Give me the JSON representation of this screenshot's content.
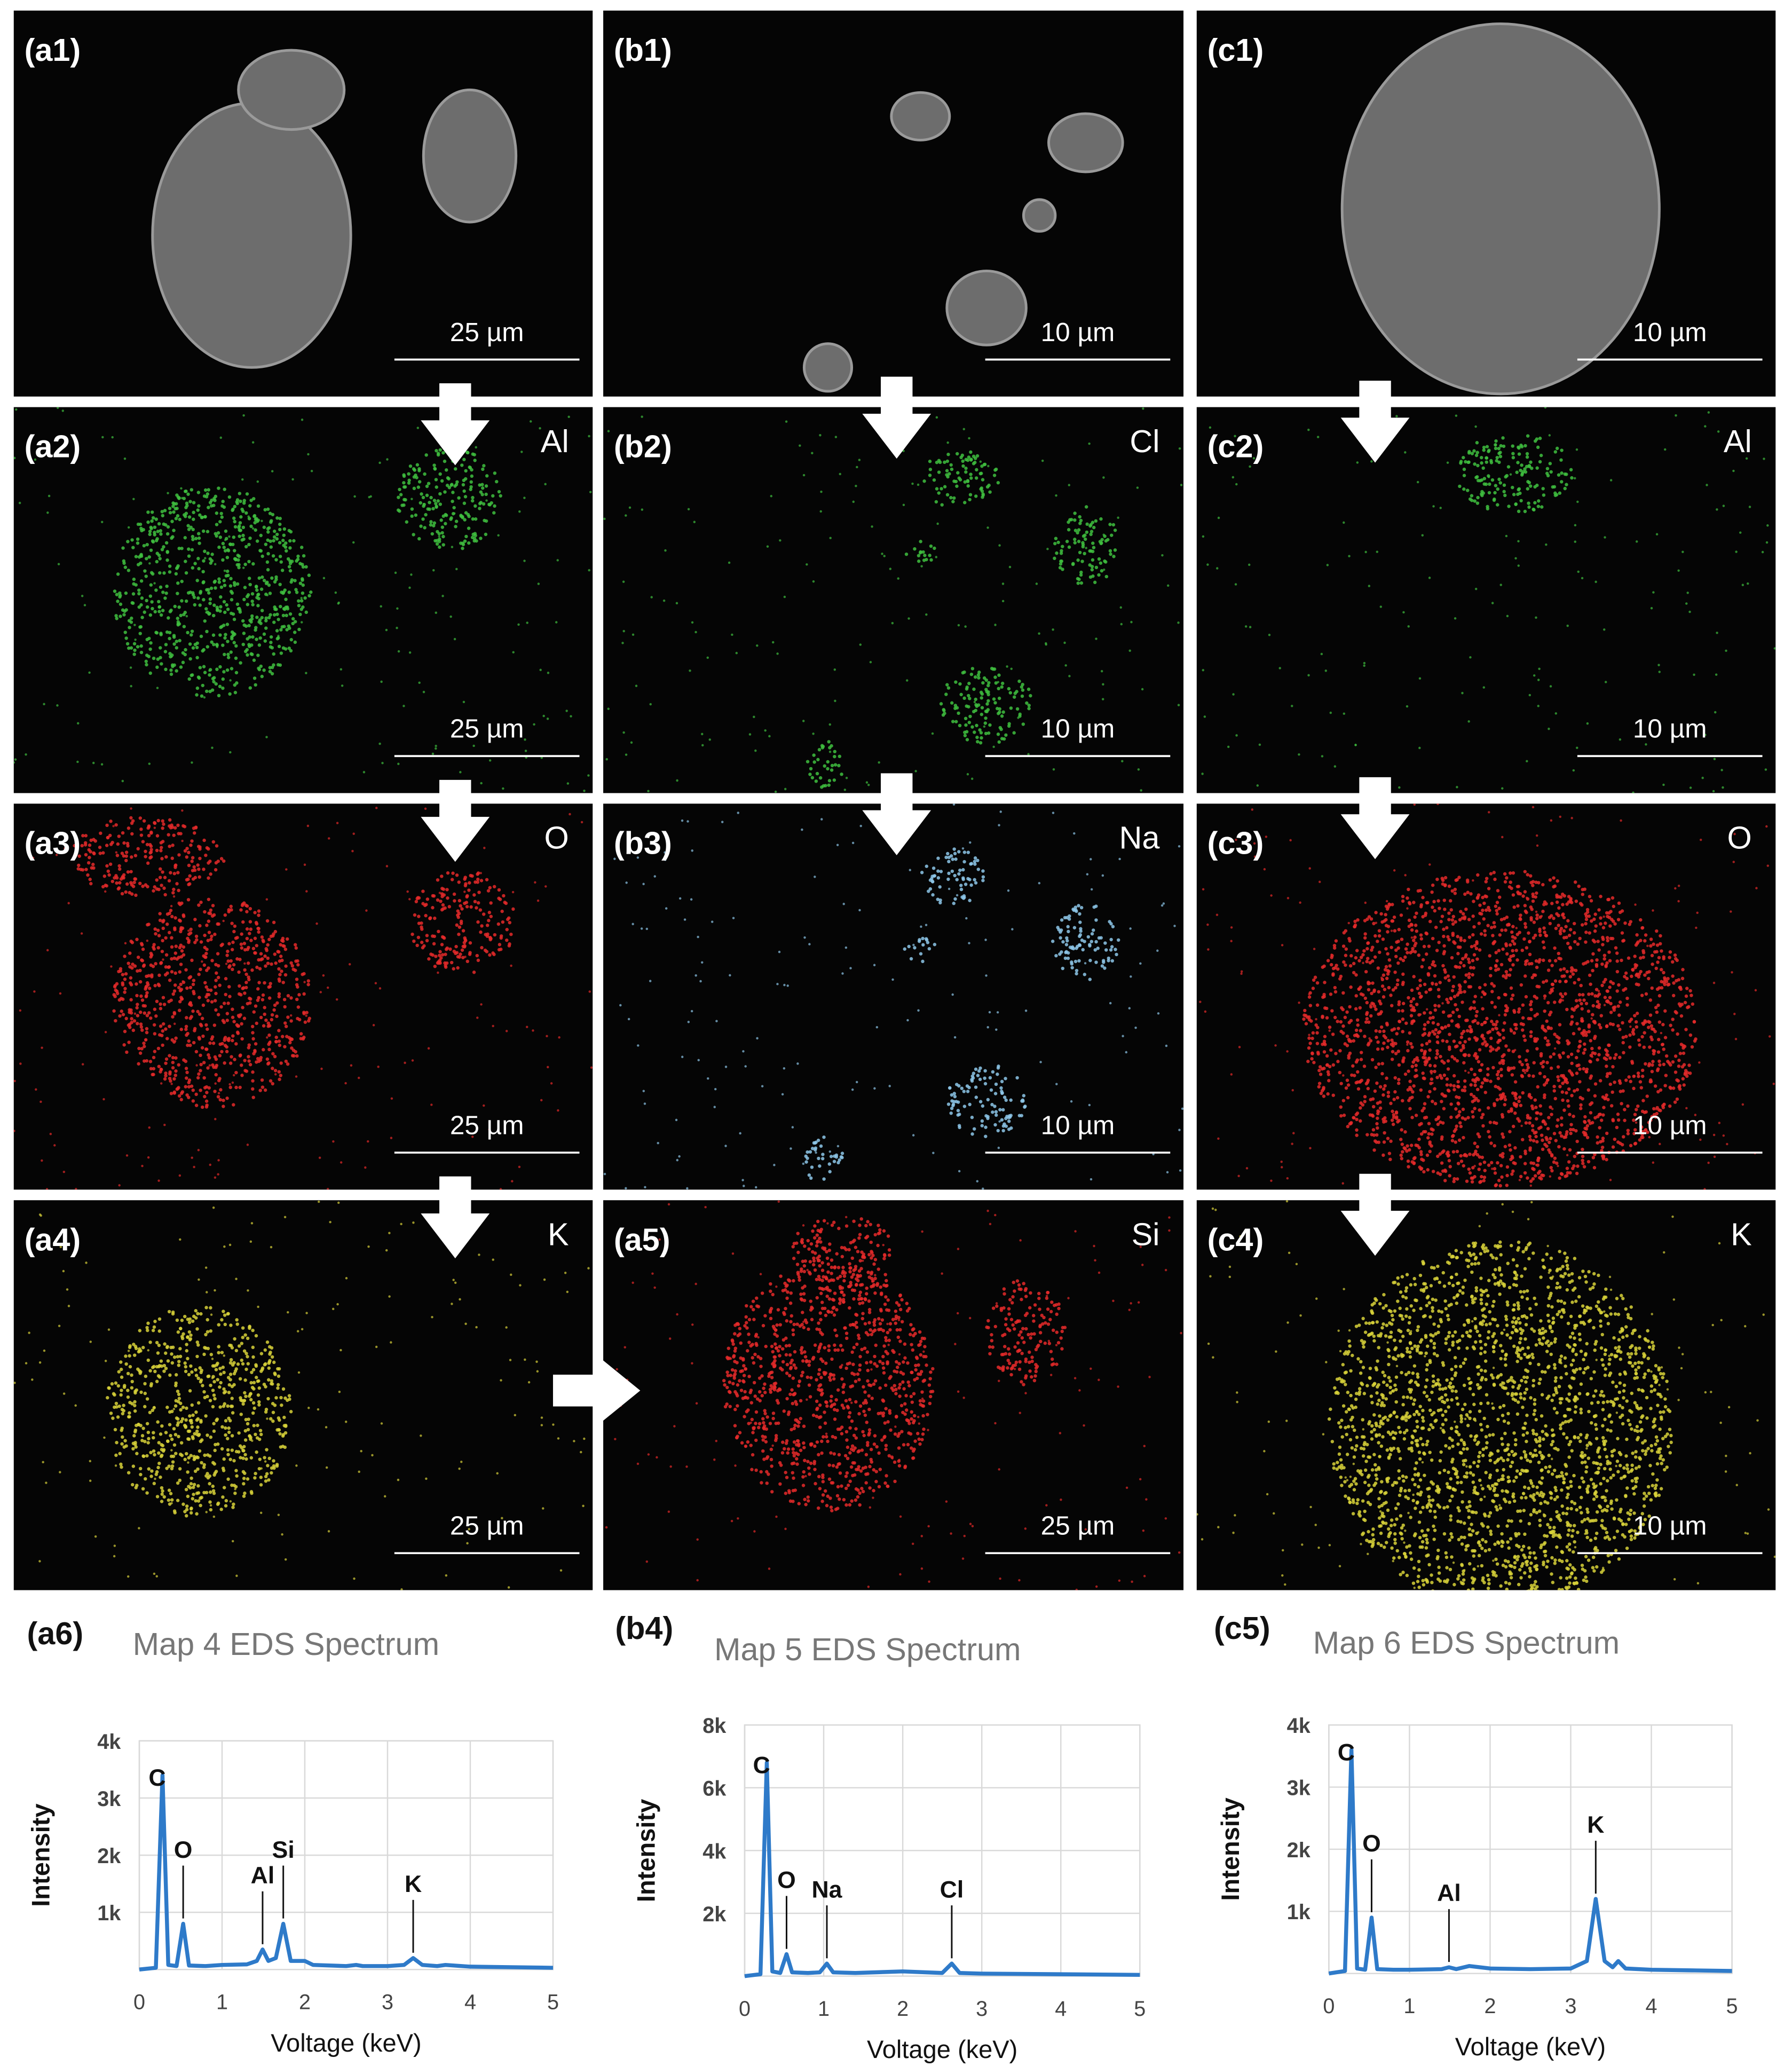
{
  "panels": [
    {
      "label": "(a1)",
      "scale": "25 µm"
    },
    {
      "label": "(b1)",
      "scale": "10 µm"
    },
    {
      "label": "(c1)",
      "scale": "10 µm"
    },
    {
      "label": "(a2)",
      "element": "Al",
      "scale": "25 µm"
    },
    {
      "label": "(b2)",
      "element": "Cl",
      "scale": "10 µm"
    },
    {
      "label": "(c2)",
      "element": "Al",
      "scale": "10 µm"
    },
    {
      "label": "(a3)",
      "element": "O",
      "scale": "25 µm"
    },
    {
      "label": "(b3)",
      "element": "Na",
      "scale": "10 µm"
    },
    {
      "label": "(c3)",
      "element": "O",
      "scale": "10 µm"
    },
    {
      "label": "(a4)",
      "element": "K",
      "scale": "25 µm"
    },
    {
      "label": "(a5)",
      "element": "Si",
      "scale": "25 µm"
    },
    {
      "label": "(c4)",
      "element": "K",
      "scale": "10 µm"
    }
  ],
  "chart_data": [
    {
      "type": "line",
      "panel_label": "(a6)",
      "title": "Map 4 EDS Spectrum",
      "x_label": "Voltage (keV)",
      "y_label": "Intensity",
      "x": [
        0,
        0.2,
        0.28,
        0.35,
        0.45,
        0.53,
        0.6,
        0.8,
        1.0,
        1.3,
        1.42,
        1.49,
        1.56,
        1.65,
        1.74,
        1.83,
        2.0,
        2.1,
        2.5,
        2.62,
        2.7,
        3.0,
        3.2,
        3.31,
        3.42,
        3.6,
        3.7,
        4.0,
        4.5,
        5.0
      ],
      "series": [
        {
          "color": "#2e7ac9",
          "values": [
            0,
            30,
            3400,
            80,
            60,
            800,
            70,
            60,
            80,
            90,
            150,
            350,
            150,
            200,
            800,
            150,
            150,
            80,
            60,
            80,
            60,
            60,
            80,
            200,
            80,
            60,
            80,
            50,
            40,
            30
          ]
        }
      ],
      "xlim": [
        0,
        5
      ],
      "ylim": [
        0,
        4000
      ],
      "xticks": [
        0,
        1,
        2,
        3,
        4,
        5
      ],
      "yticks": [
        {
          "value": 1000,
          "label": "1k"
        },
        {
          "value": 2000,
          "label": "2k"
        },
        {
          "value": 3000,
          "label": "3k"
        },
        {
          "value": 4000,
          "label": "4k"
        }
      ],
      "grid": true,
      "annotations": [
        {
          "text": "C",
          "x": 0.28
        },
        {
          "text": "O",
          "x": 0.53
        },
        {
          "text": "Al",
          "x": 1.49
        },
        {
          "text": "Si",
          "x": 1.74
        },
        {
          "text": "K",
          "x": 3.31
        }
      ]
    },
    {
      "type": "line",
      "panel_label": "(b4)",
      "title": "Map 5 EDS Spectrum",
      "x_label": "Voltage (keV)",
      "y_label": "Intensity",
      "x": [
        0,
        0.2,
        0.28,
        0.35,
        0.45,
        0.53,
        0.6,
        0.8,
        0.95,
        1.04,
        1.12,
        1.4,
        2.0,
        2.5,
        2.62,
        2.72,
        3.0,
        4.0,
        5.0
      ],
      "series": [
        {
          "color": "#2e7ac9",
          "values": [
            0,
            60,
            6800,
            150,
            100,
            700,
            120,
            100,
            120,
            400,
            120,
            100,
            150,
            100,
            400,
            100,
            80,
            60,
            40
          ]
        }
      ],
      "xlim": [
        0,
        5
      ],
      "ylim": [
        0,
        8000
      ],
      "xticks": [
        0,
        1,
        2,
        3,
        4,
        5
      ],
      "yticks": [
        {
          "value": 2000,
          "label": "2k"
        },
        {
          "value": 4000,
          "label": "4k"
        },
        {
          "value": 6000,
          "label": "6k"
        },
        {
          "value": 8000,
          "label": "8k"
        }
      ],
      "grid": true,
      "annotations": [
        {
          "text": "C",
          "x": 0.28
        },
        {
          "text": "O",
          "x": 0.53
        },
        {
          "text": "Na",
          "x": 1.04
        },
        {
          "text": "Cl",
          "x": 2.62
        }
      ]
    },
    {
      "type": "line",
      "panel_label": "(c5)",
      "title": "Map 6 EDS Spectrum",
      "x_label": "Voltage (keV)",
      "y_label": "Intensity",
      "x": [
        0,
        0.2,
        0.28,
        0.35,
        0.45,
        0.53,
        0.6,
        0.8,
        1.0,
        1.4,
        1.49,
        1.58,
        1.74,
        2.0,
        2.5,
        3.0,
        3.2,
        3.31,
        3.42,
        3.52,
        3.59,
        3.68,
        4.0,
        4.5,
        5.0
      ],
      "series": [
        {
          "color": "#2e7ac9",
          "values": [
            0,
            40,
            3600,
            80,
            60,
            900,
            70,
            60,
            60,
            70,
            100,
            70,
            120,
            80,
            70,
            80,
            200,
            1200,
            200,
            100,
            200,
            80,
            60,
            50,
            40
          ]
        }
      ],
      "xlim": [
        0,
        5
      ],
      "ylim": [
        0,
        4000
      ],
      "xticks": [
        0,
        1,
        2,
        3,
        4,
        5
      ],
      "yticks": [
        {
          "value": 1000,
          "label": "1k"
        },
        {
          "value": 2000,
          "label": "2k"
        },
        {
          "value": 3000,
          "label": "3k"
        },
        {
          "value": 4000,
          "label": "4k"
        }
      ],
      "grid": true,
      "annotations": [
        {
          "text": "C",
          "x": 0.28
        },
        {
          "text": "O",
          "x": 0.53
        },
        {
          "text": "Al",
          "x": 1.49
        },
        {
          "text": "K",
          "x": 3.31
        }
      ]
    }
  ]
}
